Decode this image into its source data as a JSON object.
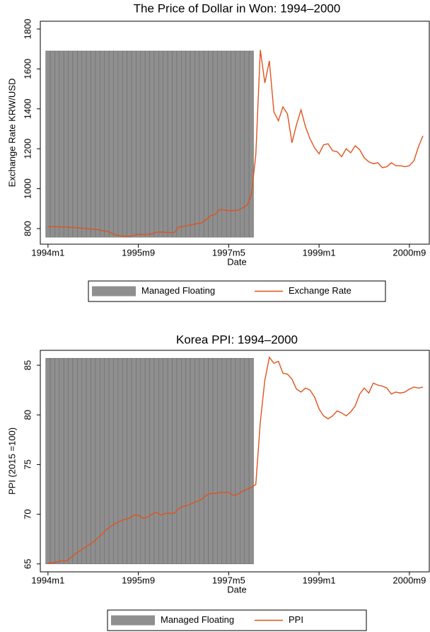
{
  "chart_data": [
    {
      "type": "line",
      "title": "The Price of Dollar in Won: 1994–2000",
      "x_label": "Date",
      "y_label": "Exchange Rate KRW/USD",
      "x": [
        408,
        409,
        410,
        411,
        412,
        413,
        414,
        415,
        416,
        417,
        418,
        419,
        420,
        421,
        422,
        423,
        424,
        425,
        426,
        427,
        428,
        429,
        430,
        431,
        432,
        433,
        434,
        435,
        436,
        437,
        438,
        439,
        440,
        441,
        442,
        443,
        444,
        445,
        446,
        447,
        448,
        449,
        450,
        451,
        452,
        453,
        454,
        455,
        456,
        457,
        458,
        459,
        460,
        461,
        462,
        463,
        464,
        465,
        466,
        467,
        468,
        469,
        470,
        471,
        472,
        473,
        474,
        475,
        476,
        477,
        478,
        479,
        480,
        481,
        482,
        483,
        484,
        485,
        486,
        487,
        488,
        489,
        490,
        491
      ],
      "series": [
        {
          "name": "Managed Floating",
          "type": "bar",
          "color": "#8f8f8f",
          "bar_base": 757,
          "values": [
            1690,
            1690,
            1690,
            1690,
            1690,
            1690,
            1690,
            1690,
            1690,
            1690,
            1690,
            1690,
            1690,
            1690,
            1690,
            1690,
            1690,
            1690,
            1690,
            1690,
            1690,
            1690,
            1690,
            1690,
            1690,
            1690,
            1690,
            1690,
            1690,
            1690,
            1690,
            1690,
            1690,
            1690,
            1690,
            1690,
            1690,
            1690,
            1690,
            1690,
            1690,
            1690,
            1690,
            1690,
            1690,
            1690,
            null,
            null,
            null,
            null,
            null,
            null,
            null,
            null,
            null,
            null,
            null,
            null,
            null,
            null,
            null,
            null,
            null,
            null,
            null,
            null,
            null,
            null,
            null,
            null,
            null,
            null,
            null,
            null,
            null,
            null,
            null,
            null,
            null,
            null,
            null,
            null,
            null,
            null
          ]
        },
        {
          "name": "Exchange Rate",
          "type": "line",
          "color": "#e0531f",
          "values": [
            810,
            810,
            809,
            808,
            808,
            806,
            805,
            803,
            801,
            799,
            797,
            795,
            790,
            788,
            778,
            768,
            764,
            762,
            762,
            765,
            772,
            770,
            770,
            774,
            782,
            783,
            781,
            780,
            781,
            808,
            811,
            815,
            820,
            825,
            828,
            845,
            865,
            870,
            895,
            893,
            890,
            890,
            892,
            903,
            915,
            965,
            1170,
            1695,
            1530,
            1640,
            1385,
            1340,
            1410,
            1375,
            1230,
            1320,
            1395,
            1310,
            1250,
            1205,
            1175,
            1220,
            1225,
            1190,
            1185,
            1160,
            1200,
            1180,
            1215,
            1195,
            1155,
            1135,
            1125,
            1130,
            1105,
            1110,
            1130,
            1115,
            1115,
            1110,
            1115,
            1140,
            1210,
            1265
          ]
        }
      ],
      "xlim": [
        406.3,
        492.4
      ],
      "xticks": [
        {
          "value": 408,
          "label": "1994m1"
        },
        {
          "value": 428,
          "label": "1995m9"
        },
        {
          "value": 448,
          "label": "1997m5"
        },
        {
          "value": 468,
          "label": "1999m1"
        },
        {
          "value": 488,
          "label": "2000m9"
        }
      ],
      "ylim": [
        722,
        1839
      ],
      "yticks": [
        800,
        1000,
        1200,
        1400,
        1600,
        1800
      ]
    },
    {
      "type": "line",
      "title": "Korea PPI: 1994–2000",
      "x_label": "Date",
      "y_label": "PPI (2015 =100)",
      "x": [
        408,
        409,
        410,
        411,
        412,
        413,
        414,
        415,
        416,
        417,
        418,
        419,
        420,
        421,
        422,
        423,
        424,
        425,
        426,
        427,
        428,
        429,
        430,
        431,
        432,
        433,
        434,
        435,
        436,
        437,
        438,
        439,
        440,
        441,
        442,
        443,
        444,
        445,
        446,
        447,
        448,
        449,
        450,
        451,
        452,
        453,
        454,
        455,
        456,
        457,
        458,
        459,
        460,
        461,
        462,
        463,
        464,
        465,
        466,
        467,
        468,
        469,
        470,
        471,
        472,
        473,
        474,
        475,
        476,
        477,
        478,
        479,
        480,
        481,
        482,
        483,
        484,
        485,
        486,
        487,
        488,
        489,
        490,
        491
      ],
      "series": [
        {
          "name": "Managed Floating",
          "type": "bar",
          "color": "#8f8f8f",
          "bar_base": 65.0,
          "values": [
            85.7,
            85.7,
            85.7,
            85.7,
            85.7,
            85.7,
            85.7,
            85.7,
            85.7,
            85.7,
            85.7,
            85.7,
            85.7,
            85.7,
            85.7,
            85.7,
            85.7,
            85.7,
            85.7,
            85.7,
            85.7,
            85.7,
            85.7,
            85.7,
            85.7,
            85.7,
            85.7,
            85.7,
            85.7,
            85.7,
            85.7,
            85.7,
            85.7,
            85.7,
            85.7,
            85.7,
            85.7,
            85.7,
            85.7,
            85.7,
            85.7,
            85.7,
            85.7,
            85.7,
            85.7,
            85.7,
            null,
            null,
            null,
            null,
            null,
            null,
            null,
            null,
            null,
            null,
            null,
            null,
            null,
            null,
            null,
            null,
            null,
            null,
            null,
            null,
            null,
            null,
            null,
            null,
            null,
            null,
            null,
            null,
            null,
            null,
            null,
            null,
            null,
            null,
            null,
            null,
            null,
            null
          ]
        },
        {
          "name": "PPI",
          "type": "line",
          "color": "#e0531f",
          "values": [
            65.1,
            65.1,
            65.2,
            65.3,
            65.3,
            65.6,
            66.0,
            66.3,
            66.6,
            66.9,
            67.2,
            67.6,
            68.0,
            68.5,
            68.8,
            69.1,
            69.3,
            69.5,
            69.6,
            69.9,
            69.9,
            69.6,
            69.7,
            70.0,
            70.2,
            69.9,
            70.1,
            70.1,
            70.1,
            70.6,
            70.8,
            70.9,
            71.1,
            71.3,
            71.5,
            71.9,
            72.1,
            72.1,
            72.2,
            72.2,
            72.2,
            71.9,
            72.0,
            72.3,
            72.5,
            72.7,
            73.0,
            79.3,
            83.5,
            85.8,
            85.2,
            85.4,
            84.2,
            84.1,
            83.6,
            82.6,
            82.3,
            82.7,
            82.5,
            81.8,
            80.6,
            79.9,
            79.6,
            79.9,
            80.4,
            80.2,
            79.9,
            80.3,
            80.9,
            82.1,
            82.7,
            82.2,
            83.2,
            83.0,
            82.9,
            82.7,
            82.1,
            82.3,
            82.2,
            82.3,
            82.6,
            82.8,
            82.7,
            82.8
          ]
        }
      ],
      "xlim": [
        406.3,
        492.4
      ],
      "xticks": [
        {
          "value": 408,
          "label": "1994m1"
        },
        {
          "value": 428,
          "label": "1995m9"
        },
        {
          "value": 448,
          "label": "1997m5"
        },
        {
          "value": 468,
          "label": "1999m1"
        },
        {
          "value": 488,
          "label": "2000m9"
        }
      ],
      "ylim": [
        64.2,
        86.5
      ],
      "yticks": [
        65,
        70,
        75,
        80,
        85
      ]
    }
  ]
}
